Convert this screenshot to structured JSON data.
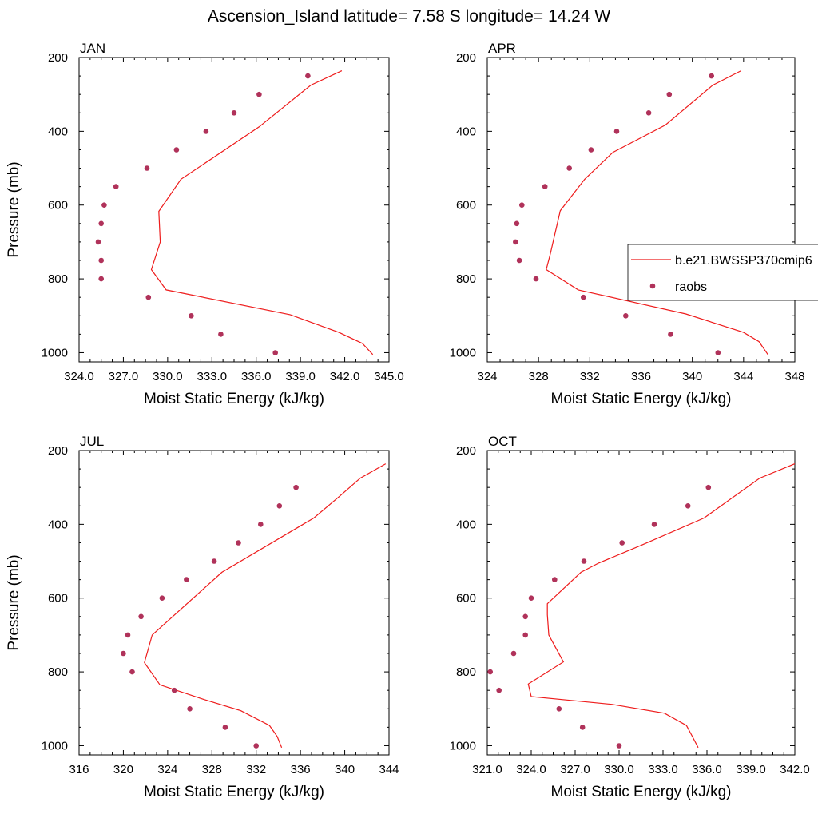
{
  "figure": {
    "title": "Ascension_Island  latitude= 7.58 S longitude= 14.24 W"
  },
  "legend": {
    "model_label": "b.e21.BWSSP370cmip6",
    "obs_label": "raobs",
    "placement": "right-middle of APR panel"
  },
  "colors": {
    "model_line": "#ee1c1c",
    "obs_marker": "#b0325a",
    "frame": "#000000",
    "background": "#ffffff"
  },
  "chart_data": [
    {
      "type": "line",
      "title": "JAN",
      "xlabel": "Moist Static Energy (kJ/kg)",
      "ylabel": "Pressure (mb)",
      "xlim": [
        324.0,
        345.0
      ],
      "ylim": [
        200,
        1025
      ],
      "y_inverted": true,
      "x_ticks": [
        324.0,
        327.0,
        330.0,
        333.0,
        336.0,
        339.0,
        342.0,
        345.0
      ],
      "x_tick_labels": [
        "324.0",
        "327.0",
        "330.0",
        "333.0",
        "336.0",
        "339.0",
        "342.0",
        "345.0"
      ],
      "y_ticks": [
        200,
        400,
        600,
        800,
        1000
      ],
      "y_tick_labels": [
        "200",
        "400",
        "600",
        "800",
        "1000"
      ],
      "series": [
        {
          "name": "b.e21.BWSSP370cmip6",
          "kind": "line",
          "x": [
            341.8,
            339.7,
            336.2,
            330.9,
            329.4,
            329.5,
            328.9,
            329.9,
            338.3,
            341.6,
            343.2,
            343.9
          ],
          "y": [
            236,
            275,
            388,
            530,
            617,
            700,
            775,
            830,
            897,
            945,
            975,
            1005
          ]
        },
        {
          "name": "raobs",
          "kind": "scatter",
          "x": [
            339.5,
            336.2,
            334.5,
            332.6,
            330.6,
            328.6,
            326.5,
            325.7,
            325.5,
            325.3,
            325.5,
            325.5,
            328.7,
            331.6,
            333.6,
            337.3
          ],
          "y": [
            250,
            300,
            350,
            400,
            450,
            500,
            550,
            600,
            650,
            700,
            750,
            800,
            850,
            900,
            950,
            1000
          ]
        }
      ]
    },
    {
      "type": "line",
      "title": "APR",
      "xlabel": "Moist Static Energy (kJ/kg)",
      "ylabel": "",
      "xlim": [
        324,
        348
      ],
      "ylim": [
        200,
        1025
      ],
      "y_inverted": true,
      "x_ticks": [
        324,
        328,
        332,
        336,
        340,
        344,
        348
      ],
      "x_tick_labels": [
        "324",
        "328",
        "332",
        "336",
        "340",
        "344",
        "348"
      ],
      "y_ticks": [
        200,
        400,
        600,
        800,
        1000
      ],
      "y_tick_labels": [
        "200",
        "400",
        "600",
        "800",
        "1000"
      ],
      "series": [
        {
          "name": "b.e21.BWSSP370cmip6",
          "kind": "line",
          "x": [
            343.8,
            341.6,
            337.9,
            333.8,
            331.6,
            329.7,
            329.2,
            328.9,
            328.6,
            331.1,
            339.5,
            344.0,
            345.2,
            345.9
          ],
          "y": [
            236,
            275,
            383,
            457,
            530,
            615,
            690,
            735,
            775,
            830,
            895,
            945,
            970,
            1005
          ]
        },
        {
          "name": "raobs",
          "kind": "scatter",
          "x": [
            341.5,
            338.2,
            336.6,
            334.1,
            332.1,
            330.4,
            328.5,
            326.7,
            326.3,
            326.2,
            326.5,
            327.8,
            331.5,
            334.8,
            338.3,
            342.0
          ],
          "y": [
            250,
            300,
            350,
            400,
            450,
            500,
            550,
            600,
            650,
            700,
            750,
            800,
            850,
            900,
            950,
            1000
          ]
        }
      ]
    },
    {
      "type": "line",
      "title": "JUL",
      "xlabel": "Moist Static Energy (kJ/kg)",
      "ylabel": "Pressure (mb)",
      "xlim": [
        316,
        344
      ],
      "ylim": [
        200,
        1025
      ],
      "y_inverted": true,
      "x_ticks": [
        316,
        320,
        324,
        328,
        332,
        336,
        340,
        344
      ],
      "x_tick_labels": [
        "316",
        "320",
        "324",
        "328",
        "332",
        "336",
        "340",
        "344"
      ],
      "y_ticks": [
        200,
        400,
        600,
        800,
        1000
      ],
      "y_tick_labels": [
        "200",
        "400",
        "600",
        "800",
        "1000"
      ],
      "series": [
        {
          "name": "b.e21.BWSSP370cmip6",
          "kind": "line",
          "x": [
            343.7,
            341.4,
            339.5,
            337.2,
            328.9,
            322.6,
            321.9,
            323.3,
            327.3,
            330.6,
            333.2,
            333.9,
            334.3
          ],
          "y": [
            236,
            275,
            325,
            383,
            530,
            700,
            775,
            835,
            875,
            905,
            945,
            975,
            1005
          ]
        },
        {
          "name": "raobs",
          "kind": "scatter",
          "x": [
            335.6,
            334.1,
            332.4,
            330.4,
            328.2,
            325.7,
            323.5,
            321.6,
            320.4,
            320.0,
            320.8,
            324.6,
            326.0,
            329.2,
            332.0
          ],
          "y": [
            300,
            350,
            400,
            450,
            500,
            550,
            600,
            650,
            700,
            750,
            800,
            850,
            900,
            950,
            1000
          ]
        }
      ]
    },
    {
      "type": "line",
      "title": "OCT",
      "xlabel": "Moist Static Energy (kJ/kg)",
      "ylabel": "",
      "xlim": [
        321.0,
        342.0
      ],
      "ylim": [
        200,
        1025
      ],
      "y_inverted": true,
      "x_ticks": [
        321.0,
        324.0,
        327.0,
        330.0,
        333.0,
        336.0,
        339.0,
        342.0
      ],
      "x_tick_labels": [
        "321.0",
        "324.0",
        "327.0",
        "330.0",
        "333.0",
        "336.0",
        "339.0",
        "342.0"
      ],
      "y_ticks": [
        200,
        400,
        600,
        800,
        1000
      ],
      "y_tick_labels": [
        "200",
        "400",
        "600",
        "800",
        "1000"
      ],
      "series": [
        {
          "name": "b.e21.BWSSP370cmip6",
          "kind": "line",
          "x": [
            342.0,
            339.6,
            335.8,
            331.5,
            328.6,
            327.4,
            325.1,
            325.1,
            325.2,
            326.2,
            323.8,
            324.0,
            329.5,
            333.1,
            334.6,
            335.0,
            335.4
          ],
          "y": [
            236,
            275,
            383,
            457,
            505,
            530,
            615,
            645,
            700,
            773,
            833,
            867,
            888,
            912,
            945,
            975,
            1005
          ]
        },
        {
          "name": "raobs",
          "kind": "scatter",
          "x": [
            336.1,
            334.7,
            332.4,
            330.2,
            327.6,
            325.6,
            324.0,
            323.6,
            323.6,
            322.8,
            321.2,
            321.8,
            325.9,
            327.5,
            330.0
          ],
          "y": [
            300,
            350,
            400,
            450,
            500,
            550,
            600,
            650,
            700,
            750,
            800,
            850,
            900,
            950,
            1000
          ]
        }
      ]
    }
  ]
}
